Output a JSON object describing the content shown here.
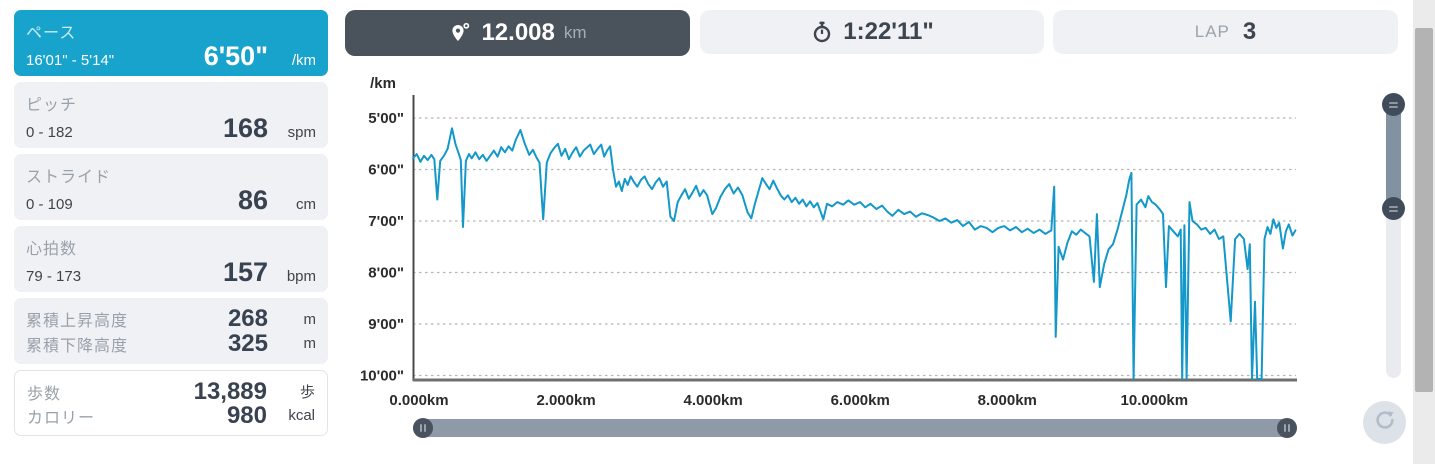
{
  "sidebar": {
    "cards": [
      {
        "title": "ペース",
        "range": "16'01\" - 5'14\"",
        "value": "6'50\"",
        "unit": "/km",
        "highlighted": true
      },
      {
        "title": "ピッチ",
        "range": "0 - 182",
        "value": "168",
        "unit": "spm"
      },
      {
        "title": "ストライド",
        "range": "0 - 109",
        "value": "86",
        "unit": "cm"
      },
      {
        "title": "心拍数",
        "range": "79 - 173",
        "value": "157",
        "unit": "bpm"
      },
      {
        "rows": [
          {
            "label": "累積上昇高度",
            "value": "268",
            "unit": "m"
          },
          {
            "label": "累積下降高度",
            "value": "325",
            "unit": "m"
          }
        ]
      },
      {
        "rows": [
          {
            "label": "歩数",
            "value": "13,889",
            "unit": "歩"
          },
          {
            "label": "カロリー",
            "value": "980",
            "unit": "kcal"
          }
        ]
      }
    ]
  },
  "tabs": [
    {
      "value": "12.008",
      "unit": "km",
      "icon": "route-pin-icon",
      "active": true
    },
    {
      "value": "1:22'11\"",
      "icon": "stopwatch-icon",
      "active": false
    },
    {
      "label": "LAP",
      "value": "3",
      "active": false
    }
  ],
  "colors": {
    "accent_teal": "#17a3cb",
    "tab_active_bg": "#4a525c",
    "chart_line": "#1398c9",
    "slider_track": "#8e9aa7",
    "slider_handle": "#49525e"
  },
  "chart_data": {
    "type": "line",
    "title": "",
    "ylabel": "/km",
    "xlabel": "",
    "legend": false,
    "grid": "horizontal-dashed",
    "y_axis_inverted_pace": true,
    "y_tick_sec": [
      300,
      360,
      420,
      480,
      540,
      600
    ],
    "y_tick_labels": [
      "5'00\"",
      "6'00\"",
      "7'00\"",
      "8'00\"",
      "9'00\"",
      "10'00\""
    ],
    "x_tick_km": [
      0,
      2,
      4,
      6,
      8,
      10
    ],
    "x_tick_labels": [
      "0.000km",
      "2.000km",
      "4.000km",
      "6.000km",
      "8.000km",
      "10.000km"
    ],
    "xlim_km": [
      0,
      12.008
    ],
    "ylim_sec": [
      273,
      603
    ],
    "series": [
      {
        "name": "pace_sec_per_km_vs_km",
        "points": [
          [
            0,
            347
          ],
          [
            0.05,
            342
          ],
          [
            0.1,
            351
          ],
          [
            0.15,
            344
          ],
          [
            0.2,
            349
          ],
          [
            0.25,
            343
          ],
          [
            0.29,
            348
          ],
          [
            0.33,
            395
          ],
          [
            0.37,
            350
          ],
          [
            0.42,
            344
          ],
          [
            0.47,
            336
          ],
          [
            0.53,
            312
          ],
          [
            0.58,
            331
          ],
          [
            0.62,
            341
          ],
          [
            0.65,
            349
          ],
          [
            0.68,
            427
          ],
          [
            0.72,
            350
          ],
          [
            0.76,
            342
          ],
          [
            0.8,
            347
          ],
          [
            0.85,
            340
          ],
          [
            0.9,
            348
          ],
          [
            0.95,
            343
          ],
          [
            1,
            350
          ],
          [
            1.05,
            344
          ],
          [
            1.1,
            338
          ],
          [
            1.15,
            345
          ],
          [
            1.2,
            334
          ],
          [
            1.25,
            340
          ],
          [
            1.3,
            333
          ],
          [
            1.35,
            338
          ],
          [
            1.4,
            325
          ],
          [
            1.46,
            314
          ],
          [
            1.52,
            330
          ],
          [
            1.58,
            343
          ],
          [
            1.63,
            337
          ],
          [
            1.68,
            346
          ],
          [
            1.72,
            352
          ],
          [
            1.77,
            418
          ],
          [
            1.82,
            352
          ],
          [
            1.87,
            341
          ],
          [
            1.92,
            335
          ],
          [
            1.97,
            330
          ],
          [
            2.02,
            344
          ],
          [
            2.07,
            336
          ],
          [
            2.12,
            348
          ],
          [
            2.17,
            340
          ],
          [
            2.22,
            334
          ],
          [
            2.27,
            345
          ],
          [
            2.32,
            338
          ],
          [
            2.37,
            334
          ],
          [
            2.41,
            331
          ],
          [
            2.46,
            342
          ],
          [
            2.51,
            336
          ],
          [
            2.56,
            331
          ],
          [
            2.6,
            345
          ],
          [
            2.64,
            338
          ],
          [
            2.68,
            333
          ],
          [
            2.72,
            360
          ],
          [
            2.76,
            380
          ],
          [
            2.8,
            374
          ],
          [
            2.84,
            385
          ],
          [
            2.88,
            371
          ],
          [
            2.92,
            378
          ],
          [
            2.96,
            368
          ],
          [
            3,
            374
          ],
          [
            3.05,
            380
          ],
          [
            3.1,
            372
          ],
          [
            3.15,
            368
          ],
          [
            3.2,
            377
          ],
          [
            3.25,
            383
          ],
          [
            3.3,
            375
          ],
          [
            3.35,
            370
          ],
          [
            3.4,
            380
          ],
          [
            3.45,
            374
          ],
          [
            3.5,
            415
          ],
          [
            3.55,
            420
          ],
          [
            3.6,
            398
          ],
          [
            3.65,
            390
          ],
          [
            3.7,
            383
          ],
          [
            3.75,
            394
          ],
          [
            3.8,
            387
          ],
          [
            3.85,
            379
          ],
          [
            3.9,
            391
          ],
          [
            3.95,
            384
          ],
          [
            4,
            390
          ],
          [
            4.07,
            412
          ],
          [
            4.12,
            405
          ],
          [
            4.18,
            392
          ],
          [
            4.24,
            383
          ],
          [
            4.3,
            377
          ],
          [
            4.36,
            388
          ],
          [
            4.42,
            381
          ],
          [
            4.48,
            390
          ],
          [
            4.55,
            410
          ],
          [
            4.6,
            417
          ],
          [
            4.65,
            400
          ],
          [
            4.7,
            385
          ],
          [
            4.75,
            370
          ],
          [
            4.8,
            377
          ],
          [
            4.85,
            383
          ],
          [
            4.9,
            373
          ],
          [
            4.95,
            382
          ],
          [
            5,
            390
          ],
          [
            5.05,
            395
          ],
          [
            5.1,
            390
          ],
          [
            5.15,
            398
          ],
          [
            5.2,
            393
          ],
          [
            5.25,
            400
          ],
          [
            5.3,
            395
          ],
          [
            5.35,
            403
          ],
          [
            5.4,
            397
          ],
          [
            5.45,
            404
          ],
          [
            5.5,
            399
          ],
          [
            5.58,
            418
          ],
          [
            5.63,
            400
          ],
          [
            5.7,
            403
          ],
          [
            5.77,
            398
          ],
          [
            5.85,
            401
          ],
          [
            5.92,
            396
          ],
          [
            6,
            401
          ],
          [
            6.08,
            398
          ],
          [
            6.15,
            404
          ],
          [
            6.22,
            400
          ],
          [
            6.3,
            406
          ],
          [
            6.38,
            402
          ],
          [
            6.45,
            409
          ],
          [
            6.52,
            414
          ],
          [
            6.6,
            407
          ],
          [
            6.68,
            412
          ],
          [
            6.76,
            409
          ],
          [
            6.84,
            415
          ],
          [
            6.92,
            411
          ],
          [
            7,
            413
          ],
          [
            7.08,
            416
          ],
          [
            7.16,
            420
          ],
          [
            7.24,
            417
          ],
          [
            7.32,
            422
          ],
          [
            7.4,
            419
          ],
          [
            7.48,
            426
          ],
          [
            7.56,
            421
          ],
          [
            7.64,
            430
          ],
          [
            7.72,
            426
          ],
          [
            7.8,
            428
          ],
          [
            7.88,
            433
          ],
          [
            7.96,
            428
          ],
          [
            8.04,
            426
          ],
          [
            8.12,
            431
          ],
          [
            8.2,
            427
          ],
          [
            8.28,
            433
          ],
          [
            8.36,
            429
          ],
          [
            8.44,
            434
          ],
          [
            8.52,
            430
          ],
          [
            8.6,
            435
          ],
          [
            8.68,
            431
          ],
          [
            8.72,
            380
          ],
          [
            8.74,
            555
          ],
          [
            8.78,
            450
          ],
          [
            8.84,
            465
          ],
          [
            8.9,
            445
          ],
          [
            8.96,
            432
          ],
          [
            9.02,
            436
          ],
          [
            9.08,
            430
          ],
          [
            9.14,
            434
          ],
          [
            9.2,
            438
          ],
          [
            9.26,
            491
          ],
          [
            9.3,
            412
          ],
          [
            9.34,
            497
          ],
          [
            9.4,
            470
          ],
          [
            9.46,
            453
          ],
          [
            9.52,
            447
          ],
          [
            9.58,
            430
          ],
          [
            9.64,
            410
          ],
          [
            9.7,
            390
          ],
          [
            9.74,
            372
          ],
          [
            9.77,
            364
          ],
          [
            9.8,
            615
          ],
          [
            9.84,
            401
          ],
          [
            9.9,
            395
          ],
          [
            9.96,
            404
          ],
          [
            10,
            391
          ],
          [
            10.05,
            398
          ],
          [
            10.1,
            401
          ],
          [
            10.16,
            407
          ],
          [
            10.2,
            412
          ],
          [
            10.24,
            497
          ],
          [
            10.28,
            426
          ],
          [
            10.34,
            432
          ],
          [
            10.4,
            438
          ],
          [
            10.44,
            430
          ],
          [
            10.46,
            615
          ],
          [
            10.49,
            425
          ],
          [
            10.52,
            615
          ],
          [
            10.56,
            398
          ],
          [
            10.6,
            420
          ],
          [
            10.66,
            424
          ],
          [
            10.72,
            430
          ],
          [
            10.78,
            428
          ],
          [
            10.84,
            435
          ],
          [
            10.9,
            430
          ],
          [
            10.96,
            441
          ],
          [
            11.02,
            438
          ],
          [
            11.12,
            537
          ],
          [
            11.18,
            441
          ],
          [
            11.24,
            435
          ],
          [
            11.3,
            441
          ],
          [
            11.35,
            476
          ],
          [
            11.38,
            447
          ],
          [
            11.41,
            615
          ],
          [
            11.45,
            514
          ],
          [
            11.48,
            615
          ],
          [
            11.54,
            615
          ],
          [
            11.58,
            441
          ],
          [
            11.62,
            427
          ],
          [
            11.66,
            435
          ],
          [
            11.7,
            418
          ],
          [
            11.74,
            428
          ],
          [
            11.78,
            422
          ],
          [
            11.83,
            452
          ],
          [
            11.87,
            432
          ],
          [
            11.91,
            424
          ],
          [
            11.96,
            437
          ],
          [
            12,
            431
          ]
        ]
      }
    ]
  }
}
